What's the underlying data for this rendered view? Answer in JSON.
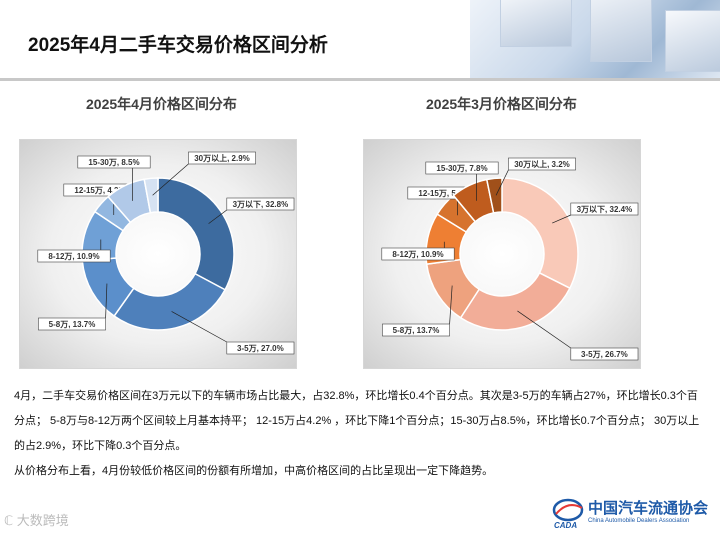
{
  "page": {
    "title": "2025年4月二手车交易价格区间分析"
  },
  "charts_meta": {
    "left_title": "2025年4月价格区间分布",
    "right_title": "2025年3月价格区间分布"
  },
  "chart_data": [
    {
      "type": "pie",
      "variant": "donut",
      "title": "2025年4月价格区间分布",
      "colors": [
        "#3d6b9f",
        "#4e80bb",
        "#5b8fcb",
        "#6fa0d6",
        "#92b7e0",
        "#b1c9e8",
        "#d6e2f2"
      ],
      "categories": [
        "3万以下",
        "3-5万",
        "5-8万",
        "8-12万",
        "12-15万",
        "15-30万",
        "30万以上"
      ],
      "values": [
        32.8,
        27.0,
        13.7,
        10.9,
        4.2,
        8.5,
        2.9
      ],
      "labels": [
        "3万以下, 32.8%",
        "3-5万, 27.0%",
        "5-8万, 13.7%",
        "8-12万, 10.9%",
        "12-15万, 4.2%",
        "15-30万, 8.5%",
        "30万以上, 2.9%"
      ]
    },
    {
      "type": "pie",
      "variant": "donut",
      "title": "2025年3月价格区间分布",
      "colors": [
        "#f9c9b8",
        "#f2ad98",
        "#eea27e",
        "#ee7f33",
        "#d6732e",
        "#bf5c1e",
        "#a0501a"
      ],
      "categories": [
        "3万以下",
        "3-5万",
        "5-8万",
        "8-12万",
        "12-15万",
        "15-30万",
        "30万以上"
      ],
      "values": [
        32.4,
        26.7,
        13.7,
        10.9,
        5.2,
        7.8,
        3.2
      ],
      "labels": [
        "3万以下, 32.4%",
        "3-5万, 26.7%",
        "5-8万, 13.7%",
        "8-12万, 10.9%",
        "12-15万, 5.2%",
        "15-30万, 7.8%",
        "30万以上, 3.2%"
      ]
    }
  ],
  "analysis": {
    "paragraph1": "4月，二手车交易价格区间在3万元以下的车辆市场占比最大，占32.8%，环比增长0.4个百分点。其次是3-5万的车辆占27%，环比增长0.3个百分点；  5-8万与8-12万两个区间较上月基本持平；  12-15万占4.2%  ，环比下降1个百分点；15-30万占8.5%，环比增长0.7个百分点；  30万以上的占2.9%，环比下降0.3个百分点。",
    "paragraph2": "从价格分布上看，4月份较低价格区间的份额有所增加，中高价格区间的占比呈现出一定下降趋势。"
  },
  "footer": {
    "watermark": "大数跨境",
    "logo_main": "中国汽车流通协会",
    "logo_sub": "China Automobile Dealers Association",
    "logo_mark": "CADA"
  }
}
